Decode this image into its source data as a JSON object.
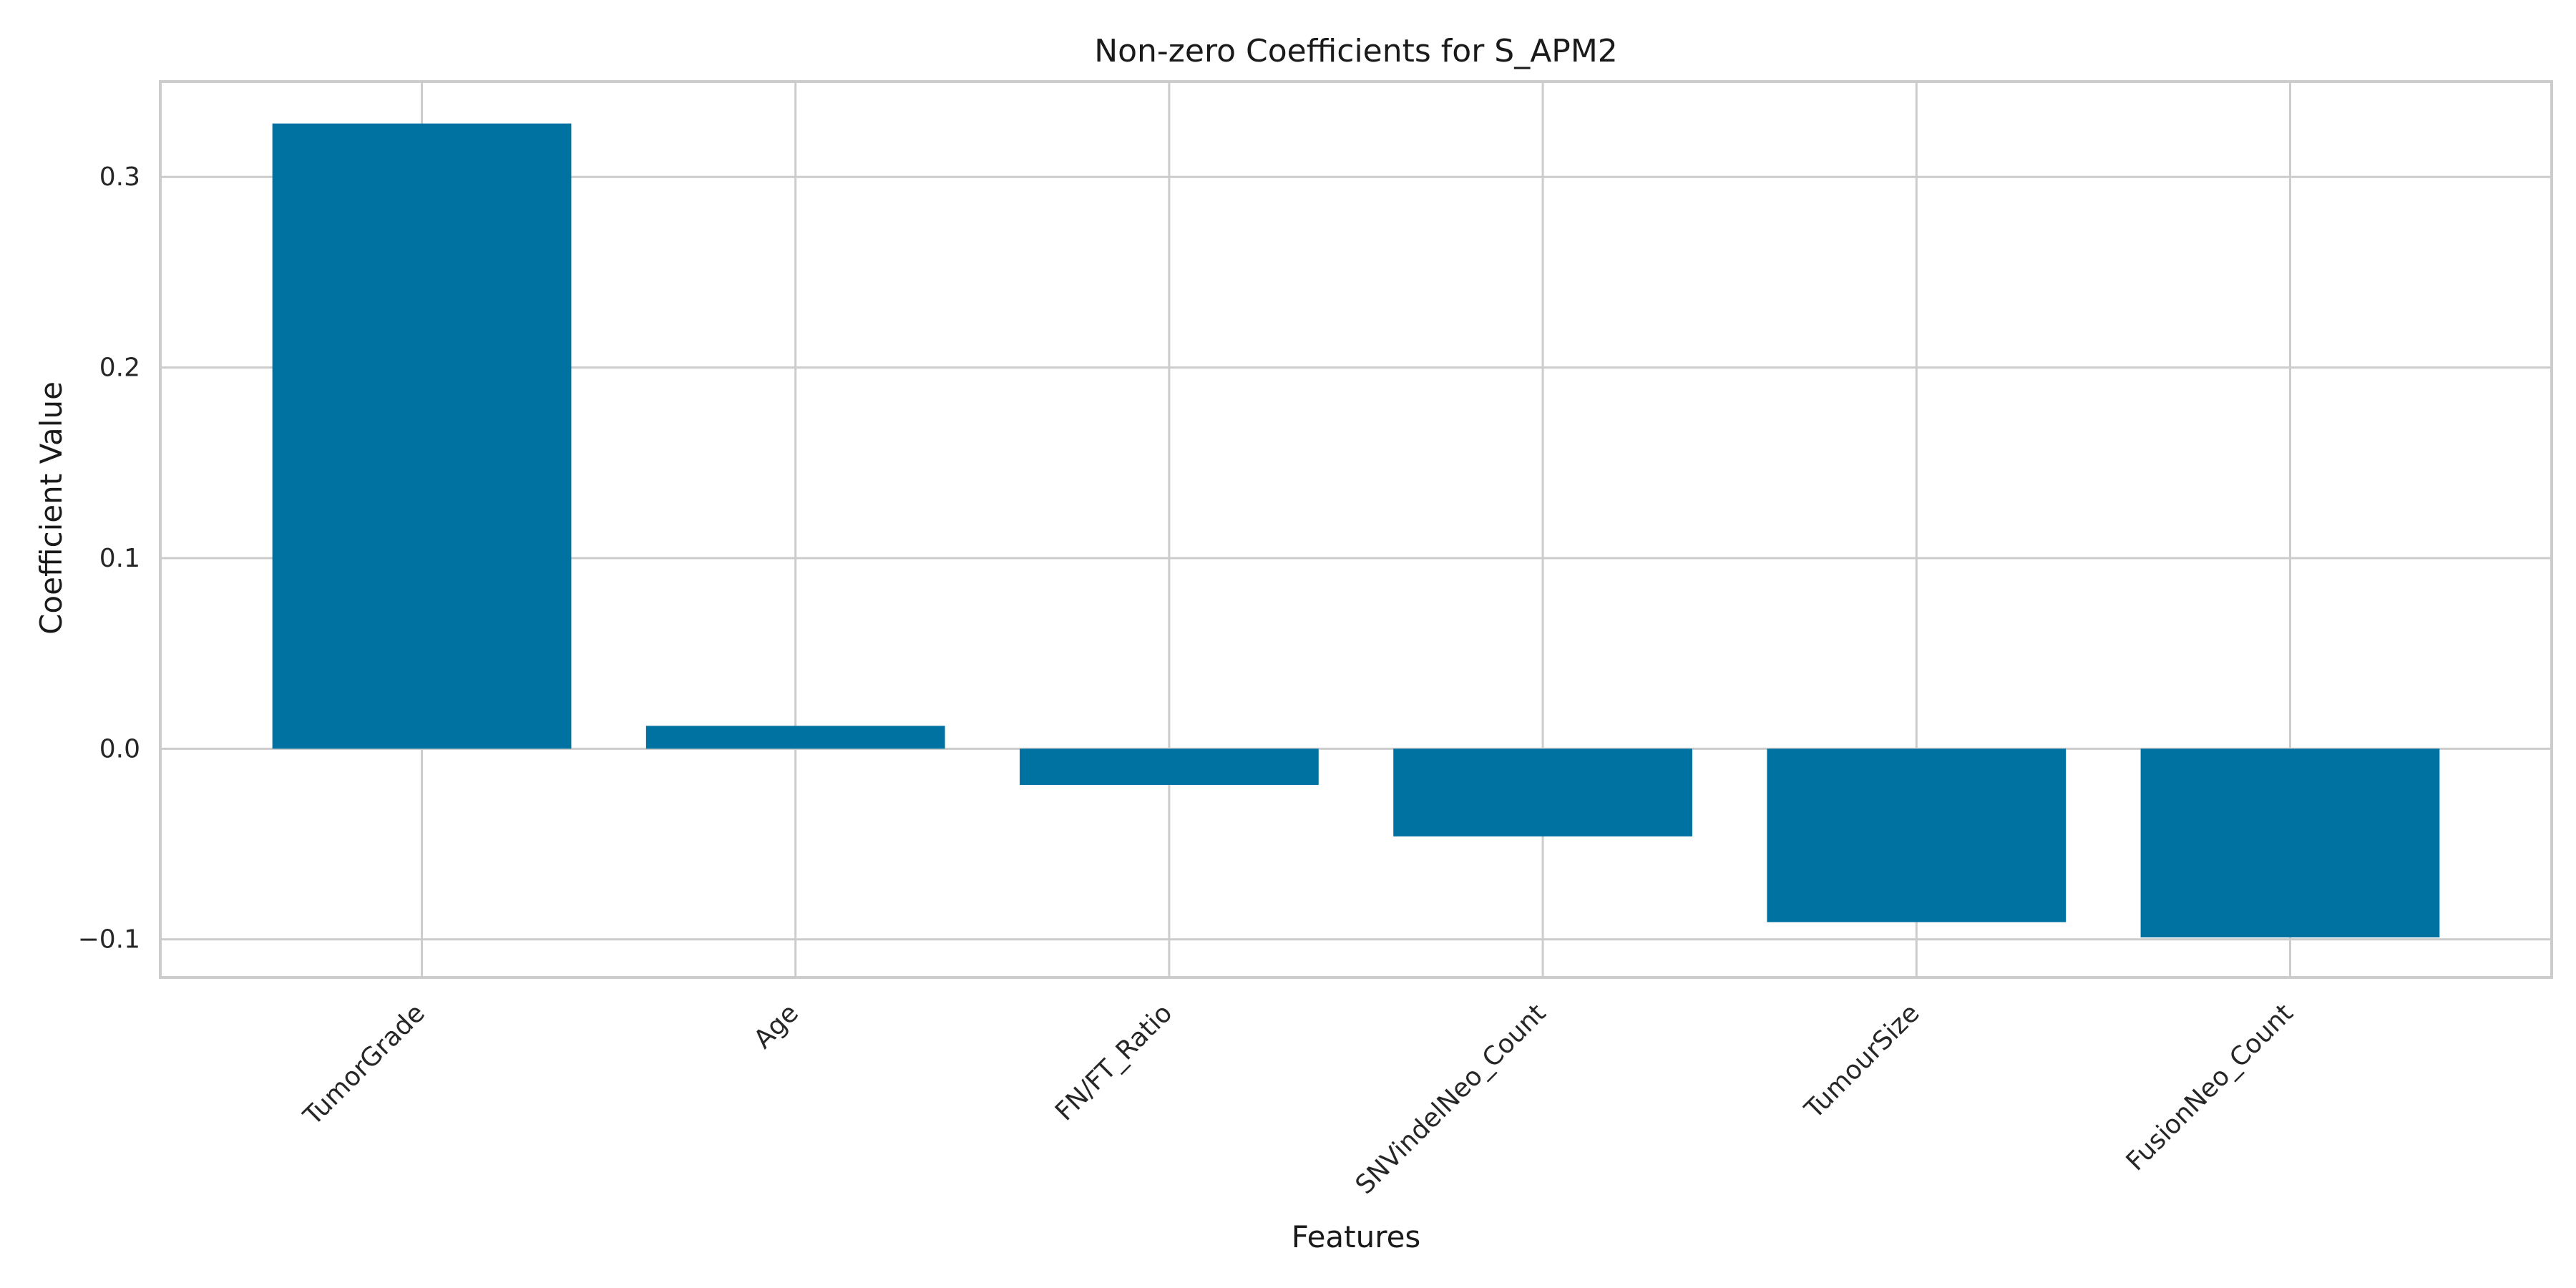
{
  "chart_data": {
    "type": "bar",
    "title": "Non-zero Coefficients for S_APM2",
    "xlabel": "Features",
    "ylabel": "Coefficient Value",
    "categories": [
      "TumorGrade",
      "Age",
      "FN/FT_Ratio",
      "SNVindelNeo_Count",
      "TumourSize",
      "FusionNeo_Count"
    ],
    "values": [
      0.328,
      0.012,
      -0.019,
      -0.046,
      -0.091,
      -0.099
    ],
    "ylim": [
      -0.12,
      0.35
    ],
    "yticks": [
      -0.1,
      0.0,
      0.1,
      0.2,
      0.3
    ],
    "ytick_labels": [
      "−0.1",
      "0.0",
      "0.1",
      "0.2",
      "0.3"
    ],
    "grid": true,
    "bar_color": "#0072a2"
  }
}
